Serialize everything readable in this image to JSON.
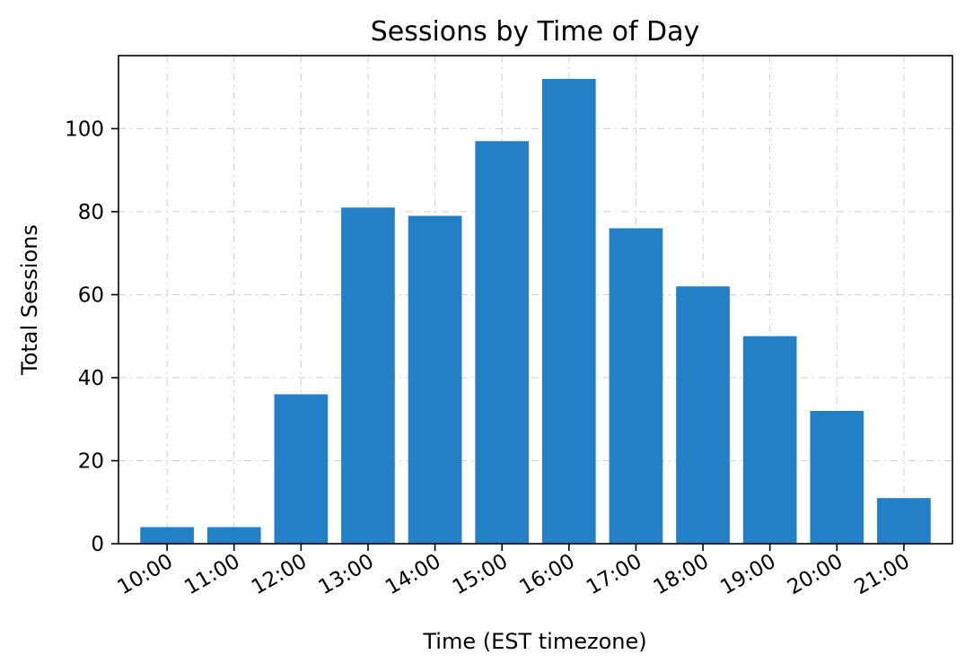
{
  "chart_data": {
    "type": "bar",
    "title": "Sessions by Time of Day",
    "xlabel": "Time (EST timezone)",
    "ylabel": "Total Sessions",
    "categories": [
      "10:00",
      "11:00",
      "12:00",
      "13:00",
      "14:00",
      "15:00",
      "16:00",
      "17:00",
      "18:00",
      "19:00",
      "20:00",
      "21:00"
    ],
    "values": [
      4,
      4,
      36,
      81,
      79,
      97,
      112,
      76,
      62,
      50,
      32,
      11
    ],
    "ylim": [
      0,
      117.6
    ],
    "yticks": [
      0,
      20,
      40,
      60,
      80,
      100
    ],
    "grid": true,
    "bar_color": "#2380c6"
  }
}
